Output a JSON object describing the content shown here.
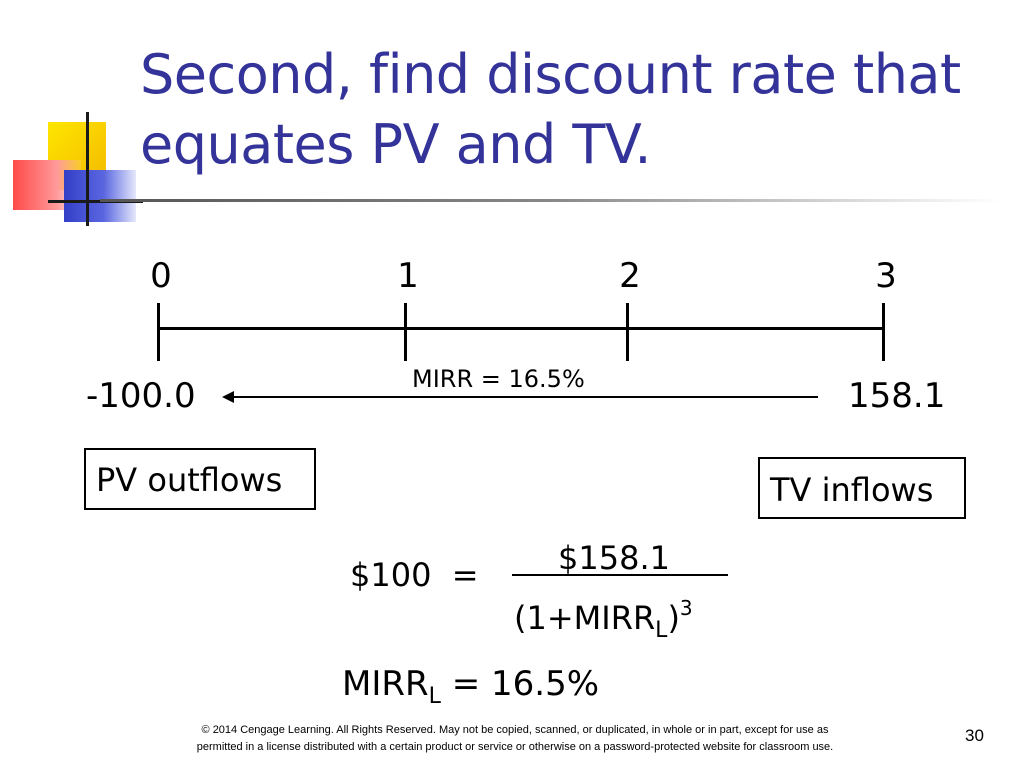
{
  "slide": {
    "title_line1": "Second, find discount rate that",
    "title_line2": "equates PV and TV.",
    "accent_color": "#333399"
  },
  "timeline": {
    "periods": [
      "0",
      "1",
      "2",
      "3"
    ],
    "left_value": "-100.0",
    "right_value": "158.1",
    "arrow_label": "MIRR = 16.5%"
  },
  "boxes": {
    "pv_label": "PV outflows",
    "tv_label": "TV inflows"
  },
  "equation": {
    "lhs": "$100  =",
    "numerator": "$158.1",
    "denominator_prefix": "(1+MIRR",
    "denominator_sub": "L",
    "denominator_suffix": ")",
    "denominator_exponent": "3"
  },
  "result": {
    "prefix": "MIRR",
    "sub": "L",
    "suffix": " = 16.5%"
  },
  "footer": {
    "copyright_line1": "© 2014 Cengage Learning. All Rights Reserved. May not be copied, scanned, or duplicated, in whole or in part, except for use as",
    "copyright_line2": "permitted in a license distributed with a certain product or service or otherwise on a password-protected website for classroom use.",
    "page_number": "30"
  }
}
